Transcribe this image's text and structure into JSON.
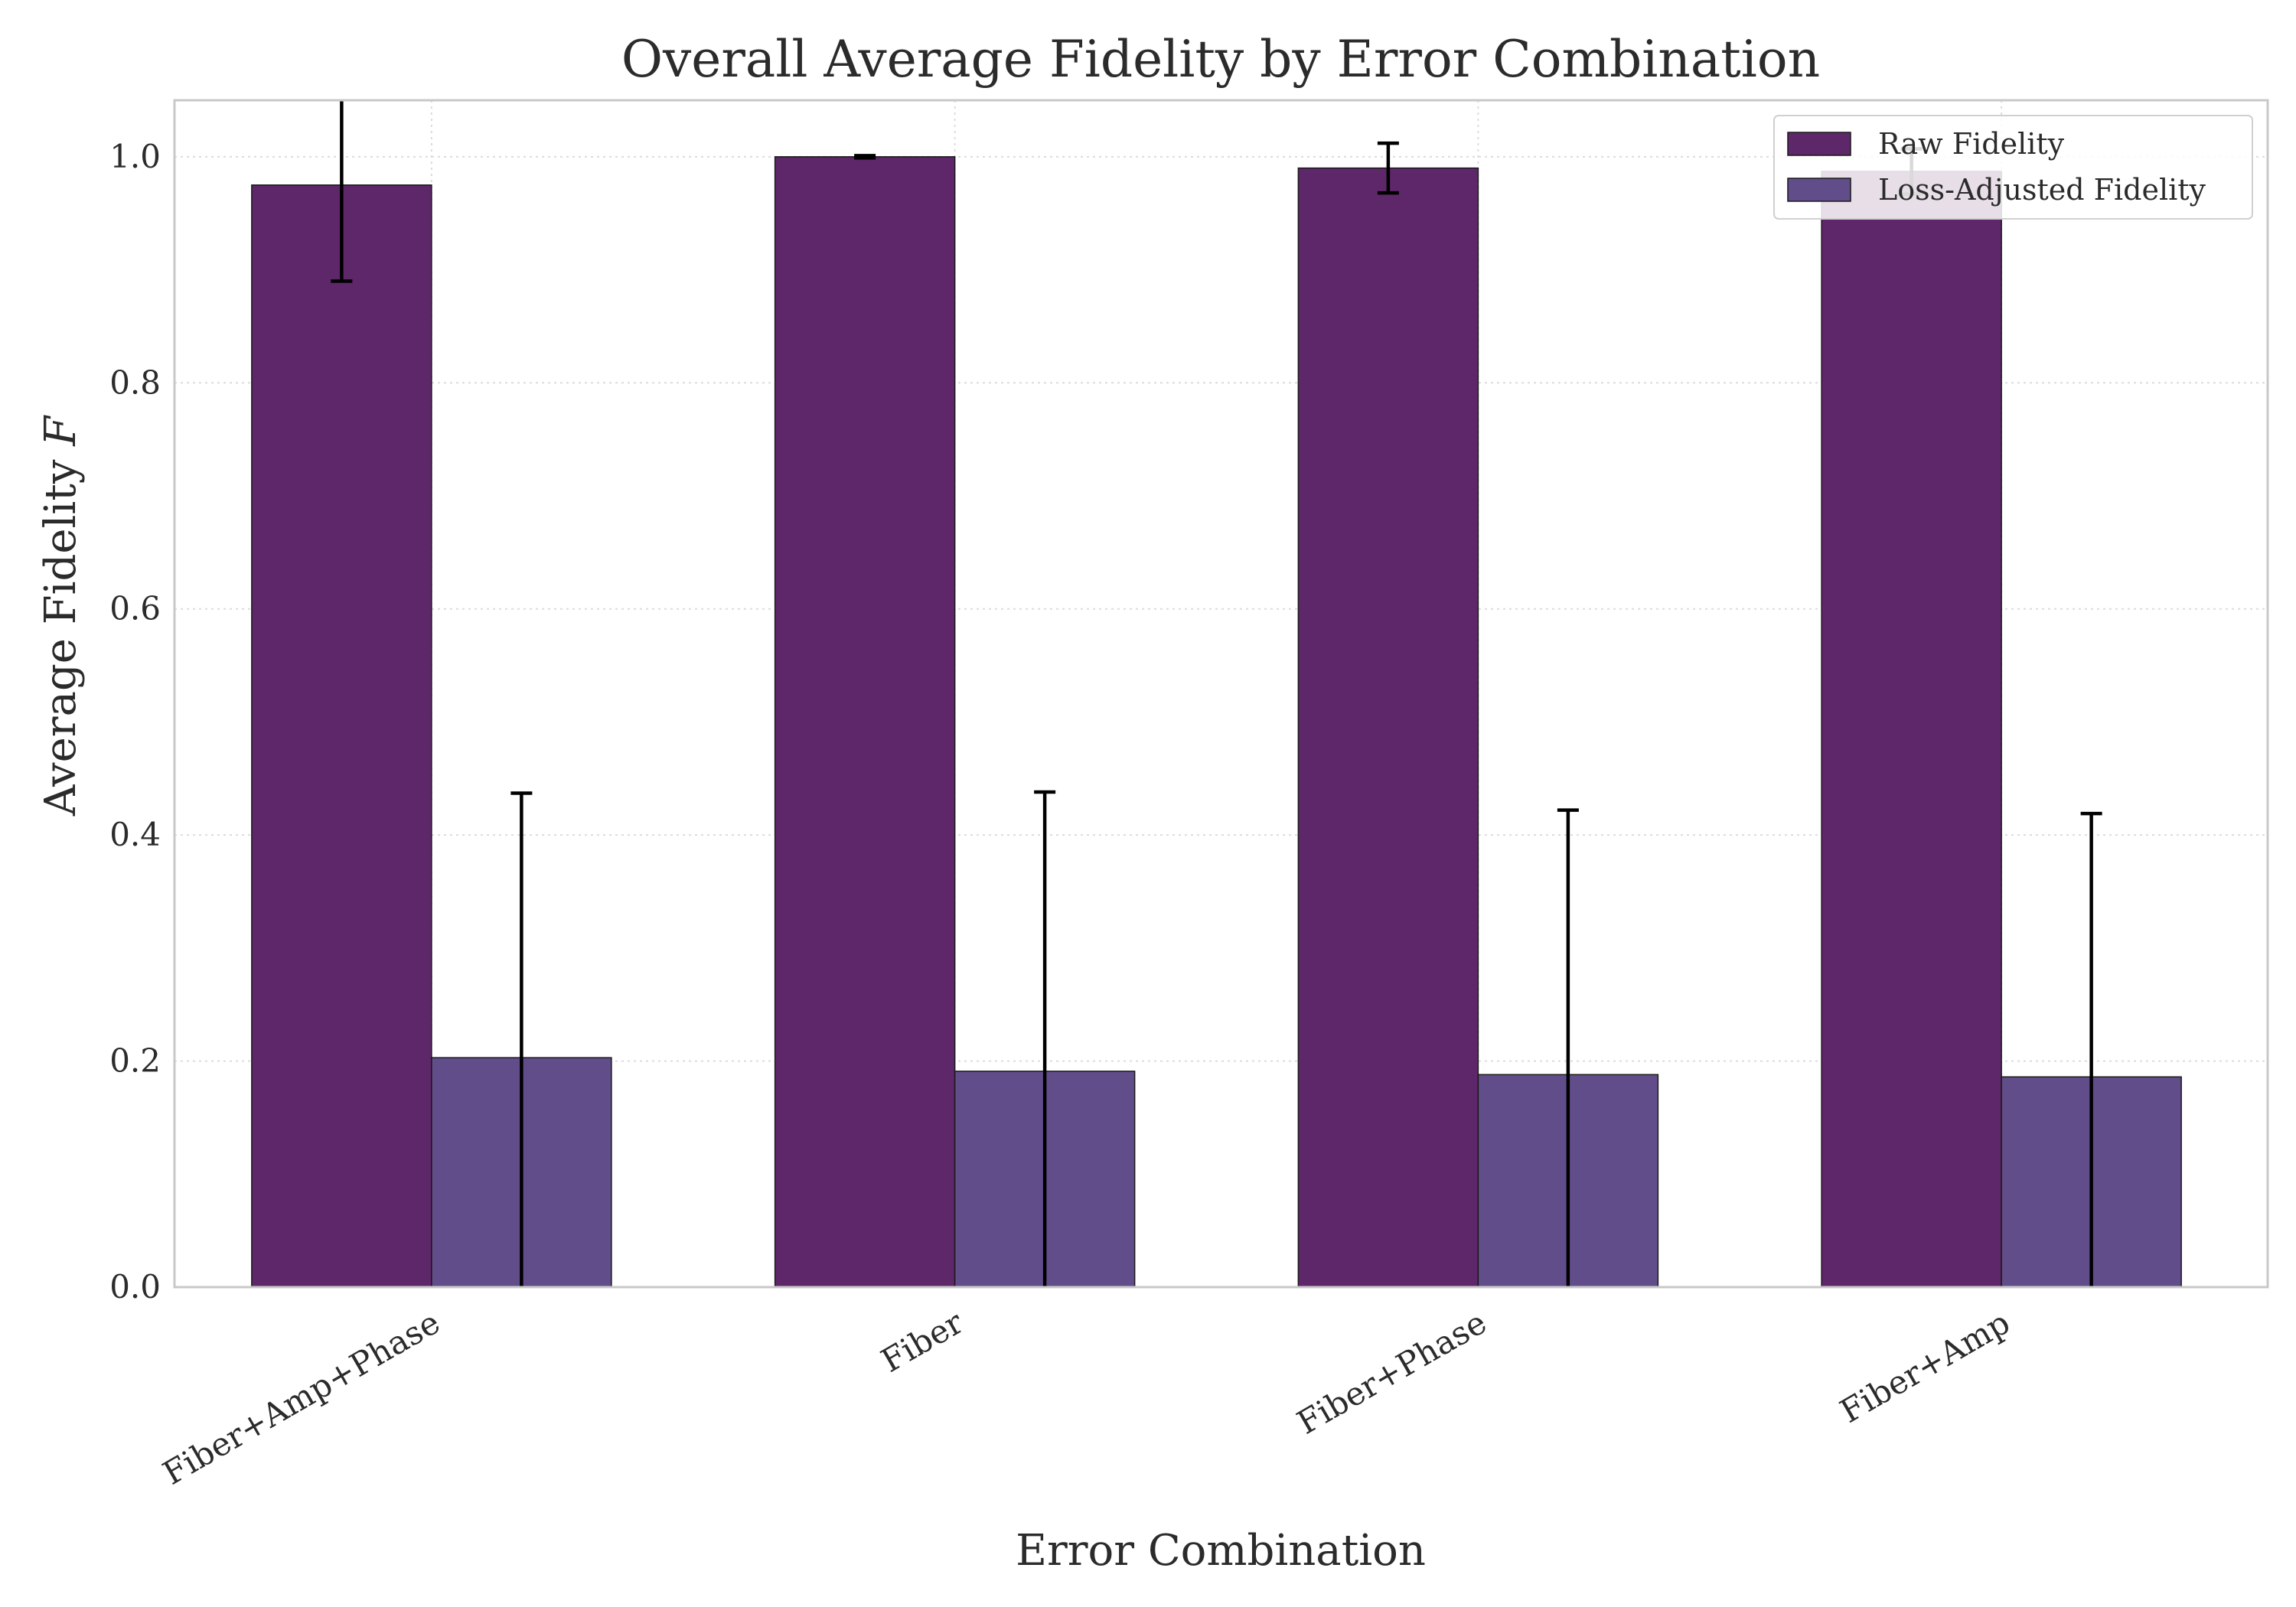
{
  "chart_data": {
    "type": "bar",
    "title": "Overall Average Fidelity by Error Combination",
    "xlabel": "Error Combination",
    "ylabel": "Average Fidelity",
    "ylabel_symbol": "F",
    "categories": [
      "Fiber+Amp+Phase",
      "Fiber",
      "Fiber+Phase",
      "Fiber+Amp"
    ],
    "series": [
      {
        "name": "Raw Fidelity",
        "color": "#5e2769",
        "values": [
          0.975,
          1.0,
          0.99,
          0.987
        ],
        "errors": [
          0.085,
          0.001,
          0.022,
          0.02
        ]
      },
      {
        "name": "Loss-Adjusted Fidelity",
        "color": "#624d8b",
        "values": [
          0.203,
          0.191,
          0.188,
          0.186
        ],
        "errors": [
          0.234,
          0.247,
          0.234,
          0.233
        ]
      }
    ],
    "ylim": [
      0,
      1.05
    ],
    "yticks": [
      0.0,
      0.2,
      0.4,
      0.6,
      0.8,
      1.0
    ],
    "ytick_labels": [
      "0.0",
      "0.2",
      "0.4",
      "0.6",
      "0.8",
      "1.0"
    ],
    "grid": true,
    "legend_position": "top-right"
  }
}
